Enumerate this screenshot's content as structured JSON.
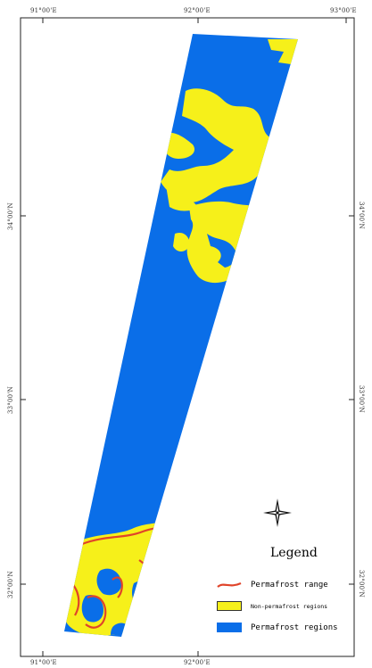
{
  "map": {
    "coords": {
      "top": [
        "91°00'E",
        "92°00'E",
        "93°00'E"
      ],
      "bottom": [
        "91°00'E",
        "92°00'E"
      ],
      "left": [
        "34°00'N",
        "33°00'N",
        "32°00'N"
      ],
      "right": [
        "34°00'N",
        "33°00'N",
        "32°00'N"
      ]
    },
    "compass_icon": "north-arrow-compass-icon"
  },
  "legend": {
    "title": "Legend",
    "items": [
      {
        "label": "Permafrost range",
        "color": "#e0442a"
      },
      {
        "label": "Non-permafrost regions",
        "color": "#f6f01a"
      },
      {
        "label": "Permafrost regions",
        "color": "#0a6ee8"
      }
    ]
  },
  "colors": {
    "permafrost": "#0a6ee8",
    "non_permafrost": "#f6f01a",
    "range_line": "#e0442a",
    "frame": "#222222"
  }
}
